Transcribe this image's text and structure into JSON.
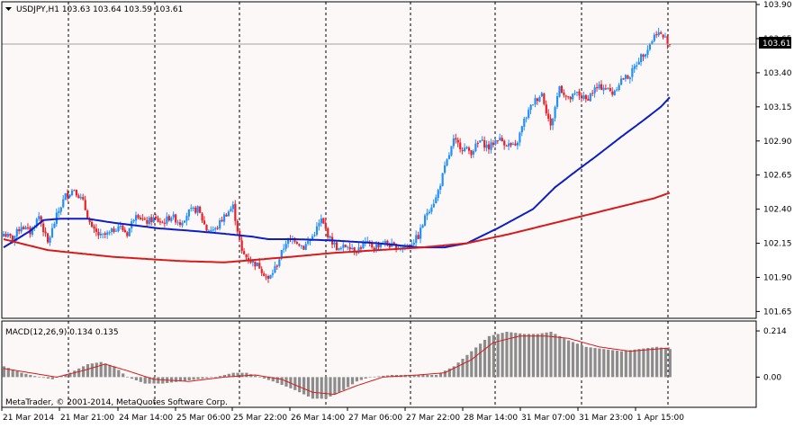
{
  "symbol_header": "USDJPY,H1  103.63 103.64 103.59 103.61",
  "macd_header": "MACD(12,26,9) 0.134 0.135",
  "copyright": "MetaTrader, © 2001-2014, MetaQuotes Software Corp.",
  "current_price_label": "103.61",
  "colors": {
    "background": "#fdf8f8",
    "bull_candle": "#1e90ff",
    "bear_candle": "#e8202a",
    "ma_fast": "#0b1fc4",
    "ma_slow": "#d71a1a",
    "macd_hist": "#8c8c8c",
    "macd_signal": "#d71a1a",
    "grid": "#000000"
  },
  "chart_data": [
    {
      "type": "candlestick",
      "name": "USDJPY,H1",
      "y_ticks": [
        "103.90",
        "103.65",
        "103.40",
        "103.15",
        "102.90",
        "102.65",
        "102.40",
        "102.15",
        "101.90",
        "101.65"
      ],
      "x_tick_labels": [
        "21 Mar 2014",
        "21 Mar 21:00",
        "24 Mar 14:00",
        "25 Mar 06:00",
        "25 Mar 22:00",
        "26 Mar 14:00",
        "27 Mar 06:00",
        "27 Mar 22:00",
        "28 Mar 14:00",
        "31 Mar 07:00",
        "31 Mar 23:00",
        "1 Apr 15:00"
      ],
      "ylim": [
        101.6,
        103.92
      ],
      "grid": "vertical dashed",
      "current_price": 103.61,
      "close_anchors": [
        [
          0,
          102.22
        ],
        [
          4,
          102.18
        ],
        [
          8,
          102.28
        ],
        [
          12,
          102.23
        ],
        [
          16,
          102.35
        ],
        [
          20,
          102.15
        ],
        [
          24,
          102.35
        ],
        [
          28,
          102.5
        ],
        [
          32,
          102.55
        ],
        [
          36,
          102.45
        ],
        [
          40,
          102.25
        ],
        [
          44,
          102.2
        ],
        [
          48,
          102.22
        ],
        [
          52,
          102.28
        ],
        [
          56,
          102.22
        ],
        [
          60,
          102.38
        ],
        [
          64,
          102.3
        ],
        [
          68,
          102.33
        ],
        [
          72,
          102.3
        ],
        [
          76,
          102.35
        ],
        [
          80,
          102.3
        ],
        [
          84,
          102.38
        ],
        [
          88,
          102.4
        ],
        [
          92,
          102.25
        ],
        [
          96,
          102.25
        ],
        [
          100,
          102.35
        ],
        [
          104,
          102.42
        ],
        [
          108,
          102.08
        ],
        [
          112,
          102.02
        ],
        [
          116,
          101.98
        ],
        [
          120,
          101.88
        ],
        [
          124,
          102.0
        ],
        [
          128,
          102.16
        ],
        [
          132,
          102.18
        ],
        [
          136,
          102.12
        ],
        [
          140,
          102.2
        ],
        [
          144,
          102.32
        ],
        [
          148,
          102.18
        ],
        [
          152,
          102.1
        ],
        [
          156,
          102.14
        ],
        [
          160,
          102.1
        ],
        [
          164,
          102.15
        ],
        [
          168,
          102.12
        ],
        [
          172,
          102.16
        ],
        [
          176,
          102.13
        ],
        [
          180,
          102.12
        ],
        [
          184,
          102.14
        ],
        [
          188,
          102.2
        ],
        [
          192,
          102.38
        ],
        [
          196,
          102.48
        ],
        [
          200,
          102.7
        ],
        [
          204,
          102.9
        ],
        [
          208,
          102.85
        ],
        [
          212,
          102.82
        ],
        [
          216,
          102.9
        ],
        [
          220,
          102.85
        ],
        [
          224,
          102.92
        ],
        [
          228,
          102.88
        ],
        [
          232,
          102.85
        ],
        [
          236,
          103.05
        ],
        [
          240,
          103.18
        ],
        [
          244,
          103.25
        ],
        [
          248,
          103.0
        ],
        [
          252,
          103.3
        ],
        [
          256,
          103.2
        ],
        [
          260,
          103.25
        ],
        [
          264,
          103.2
        ],
        [
          268,
          103.28
        ],
        [
          272,
          103.3
        ],
        [
          276,
          103.25
        ],
        [
          280,
          103.35
        ],
        [
          284,
          103.38
        ],
        [
          288,
          103.5
        ],
        [
          292,
          103.58
        ],
        [
          296,
          103.7
        ],
        [
          300,
          103.65
        ],
        [
          302,
          103.61
        ]
      ],
      "moving_averages": [
        {
          "color": "#0b1fc4",
          "anchors": [
            [
              0,
              102.12
            ],
            [
              6,
              102.18
            ],
            [
              12,
              102.24
            ],
            [
              18,
              102.32
            ],
            [
              26,
              102.33
            ],
            [
              38,
              102.33
            ],
            [
              50,
              102.3
            ],
            [
              70,
              102.26
            ],
            [
              86,
              102.24
            ],
            [
              100,
              102.22
            ],
            [
              112,
              102.2
            ],
            [
              120,
              102.18
            ],
            [
              132,
              102.18
            ],
            [
              150,
              102.17
            ],
            [
              170,
              102.15
            ],
            [
              188,
              102.12
            ],
            [
              200,
              102.12
            ],
            [
              210,
              102.15
            ],
            [
              224,
              102.26
            ],
            [
              240,
              102.4
            ],
            [
              250,
              102.56
            ],
            [
              258,
              102.66
            ],
            [
              268,
              102.78
            ],
            [
              280,
              102.93
            ],
            [
              290,
              103.05
            ],
            [
              298,
              103.15
            ],
            [
              302,
              103.22
            ]
          ]
        },
        {
          "color": "#d71a1a",
          "anchors": [
            [
              0,
              102.18
            ],
            [
              20,
              102.1
            ],
            [
              50,
              102.05
            ],
            [
              80,
              102.02
            ],
            [
              100,
              102.01
            ],
            [
              115,
              102.03
            ],
            [
              130,
              102.05
            ],
            [
              150,
              102.08
            ],
            [
              170,
              102.1
            ],
            [
              190,
              102.12
            ],
            [
              210,
              102.15
            ],
            [
              230,
              102.22
            ],
            [
              250,
              102.3
            ],
            [
              265,
              102.36
            ],
            [
              280,
              102.42
            ],
            [
              295,
              102.48
            ],
            [
              302,
              102.52
            ]
          ]
        }
      ]
    },
    {
      "type": "bar",
      "name": "MACD(12,26,9)",
      "y_ticks": [
        "0.214",
        "0.00"
      ],
      "ylim": [
        -0.14,
        0.26
      ],
      "macd_value": 0.134,
      "signal_value": 0.135,
      "histogram_anchors": [
        [
          0,
          0.05
        ],
        [
          8,
          0.02
        ],
        [
          16,
          0.0
        ],
        [
          22,
          -0.01
        ],
        [
          30,
          0.02
        ],
        [
          38,
          0.06
        ],
        [
          44,
          0.07
        ],
        [
          50,
          0.05
        ],
        [
          56,
          0.0
        ],
        [
          64,
          -0.03
        ],
        [
          72,
          -0.03
        ],
        [
          80,
          -0.02
        ],
        [
          88,
          -0.01
        ],
        [
          96,
          0.0
        ],
        [
          104,
          0.02
        ],
        [
          110,
          0.02
        ],
        [
          116,
          0.0
        ],
        [
          122,
          -0.02
        ],
        [
          132,
          -0.06
        ],
        [
          140,
          -0.1
        ],
        [
          146,
          -0.1
        ],
        [
          154,
          -0.06
        ],
        [
          160,
          -0.02
        ],
        [
          166,
          0.0
        ],
        [
          176,
          0.01
        ],
        [
          188,
          0.01
        ],
        [
          196,
          0.01
        ],
        [
          204,
          0.05
        ],
        [
          212,
          0.12
        ],
        [
          220,
          0.19
        ],
        [
          228,
          0.21
        ],
        [
          236,
          0.2
        ],
        [
          242,
          0.2
        ],
        [
          248,
          0.21
        ],
        [
          256,
          0.17
        ],
        [
          264,
          0.14
        ],
        [
          272,
          0.13
        ],
        [
          280,
          0.12
        ],
        [
          288,
          0.13
        ],
        [
          296,
          0.14
        ],
        [
          302,
          0.13
        ]
      ],
      "signal_anchors": [
        [
          0,
          0.04
        ],
        [
          12,
          0.02
        ],
        [
          24,
          0.0
        ],
        [
          36,
          0.03
        ],
        [
          46,
          0.06
        ],
        [
          56,
          0.03
        ],
        [
          68,
          -0.01
        ],
        [
          84,
          -0.02
        ],
        [
          100,
          0.0
        ],
        [
          114,
          0.01
        ],
        [
          126,
          -0.01
        ],
        [
          140,
          -0.07
        ],
        [
          150,
          -0.08
        ],
        [
          160,
          -0.04
        ],
        [
          172,
          0.0
        ],
        [
          188,
          0.01
        ],
        [
          200,
          0.02
        ],
        [
          212,
          0.08
        ],
        [
          222,
          0.16
        ],
        [
          234,
          0.19
        ],
        [
          246,
          0.19
        ],
        [
          256,
          0.18
        ],
        [
          270,
          0.14
        ],
        [
          284,
          0.12
        ],
        [
          296,
          0.13
        ],
        [
          302,
          0.135
        ]
      ]
    }
  ]
}
